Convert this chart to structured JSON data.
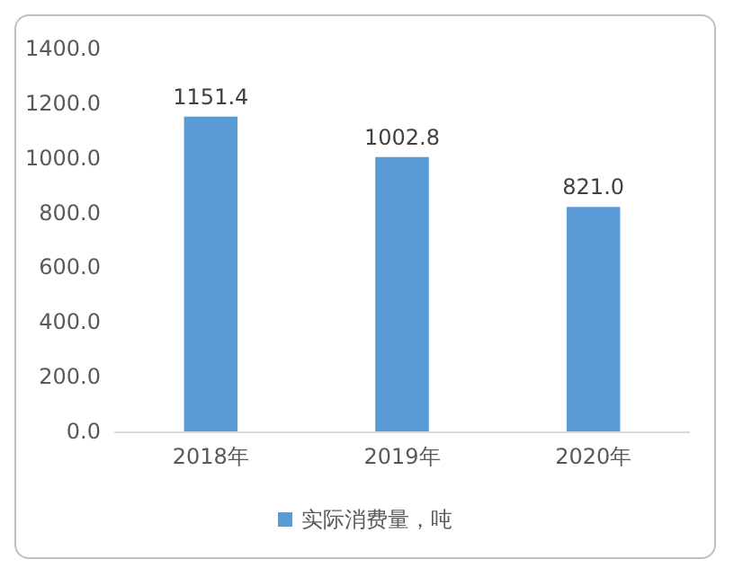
{
  "chart_data": {
    "type": "bar",
    "categories": [
      "2018年",
      "2019年",
      "2020年"
    ],
    "series": [
      {
        "name": "实际消费量，吨",
        "color": "#5b9bd5",
        "values": [
          1151.4,
          1002.8,
          821.0
        ],
        "value_labels": [
          "1151.4",
          "1002.8",
          "821.0"
        ]
      }
    ],
    "ylim": [
      0,
      1400
    ],
    "yticks": [
      {
        "value": 0,
        "label": "0.0"
      },
      {
        "value": 200,
        "label": "200.0"
      },
      {
        "value": 400,
        "label": "400.0"
      },
      {
        "value": 600,
        "label": "600.0"
      },
      {
        "value": 800,
        "label": "800.0"
      },
      {
        "value": 1000,
        "label": "1000.0"
      },
      {
        "value": 1200,
        "label": "1200.0"
      },
      {
        "value": 1400,
        "label": "1400.0"
      }
    ],
    "grid": false,
    "legend": "bottom"
  }
}
